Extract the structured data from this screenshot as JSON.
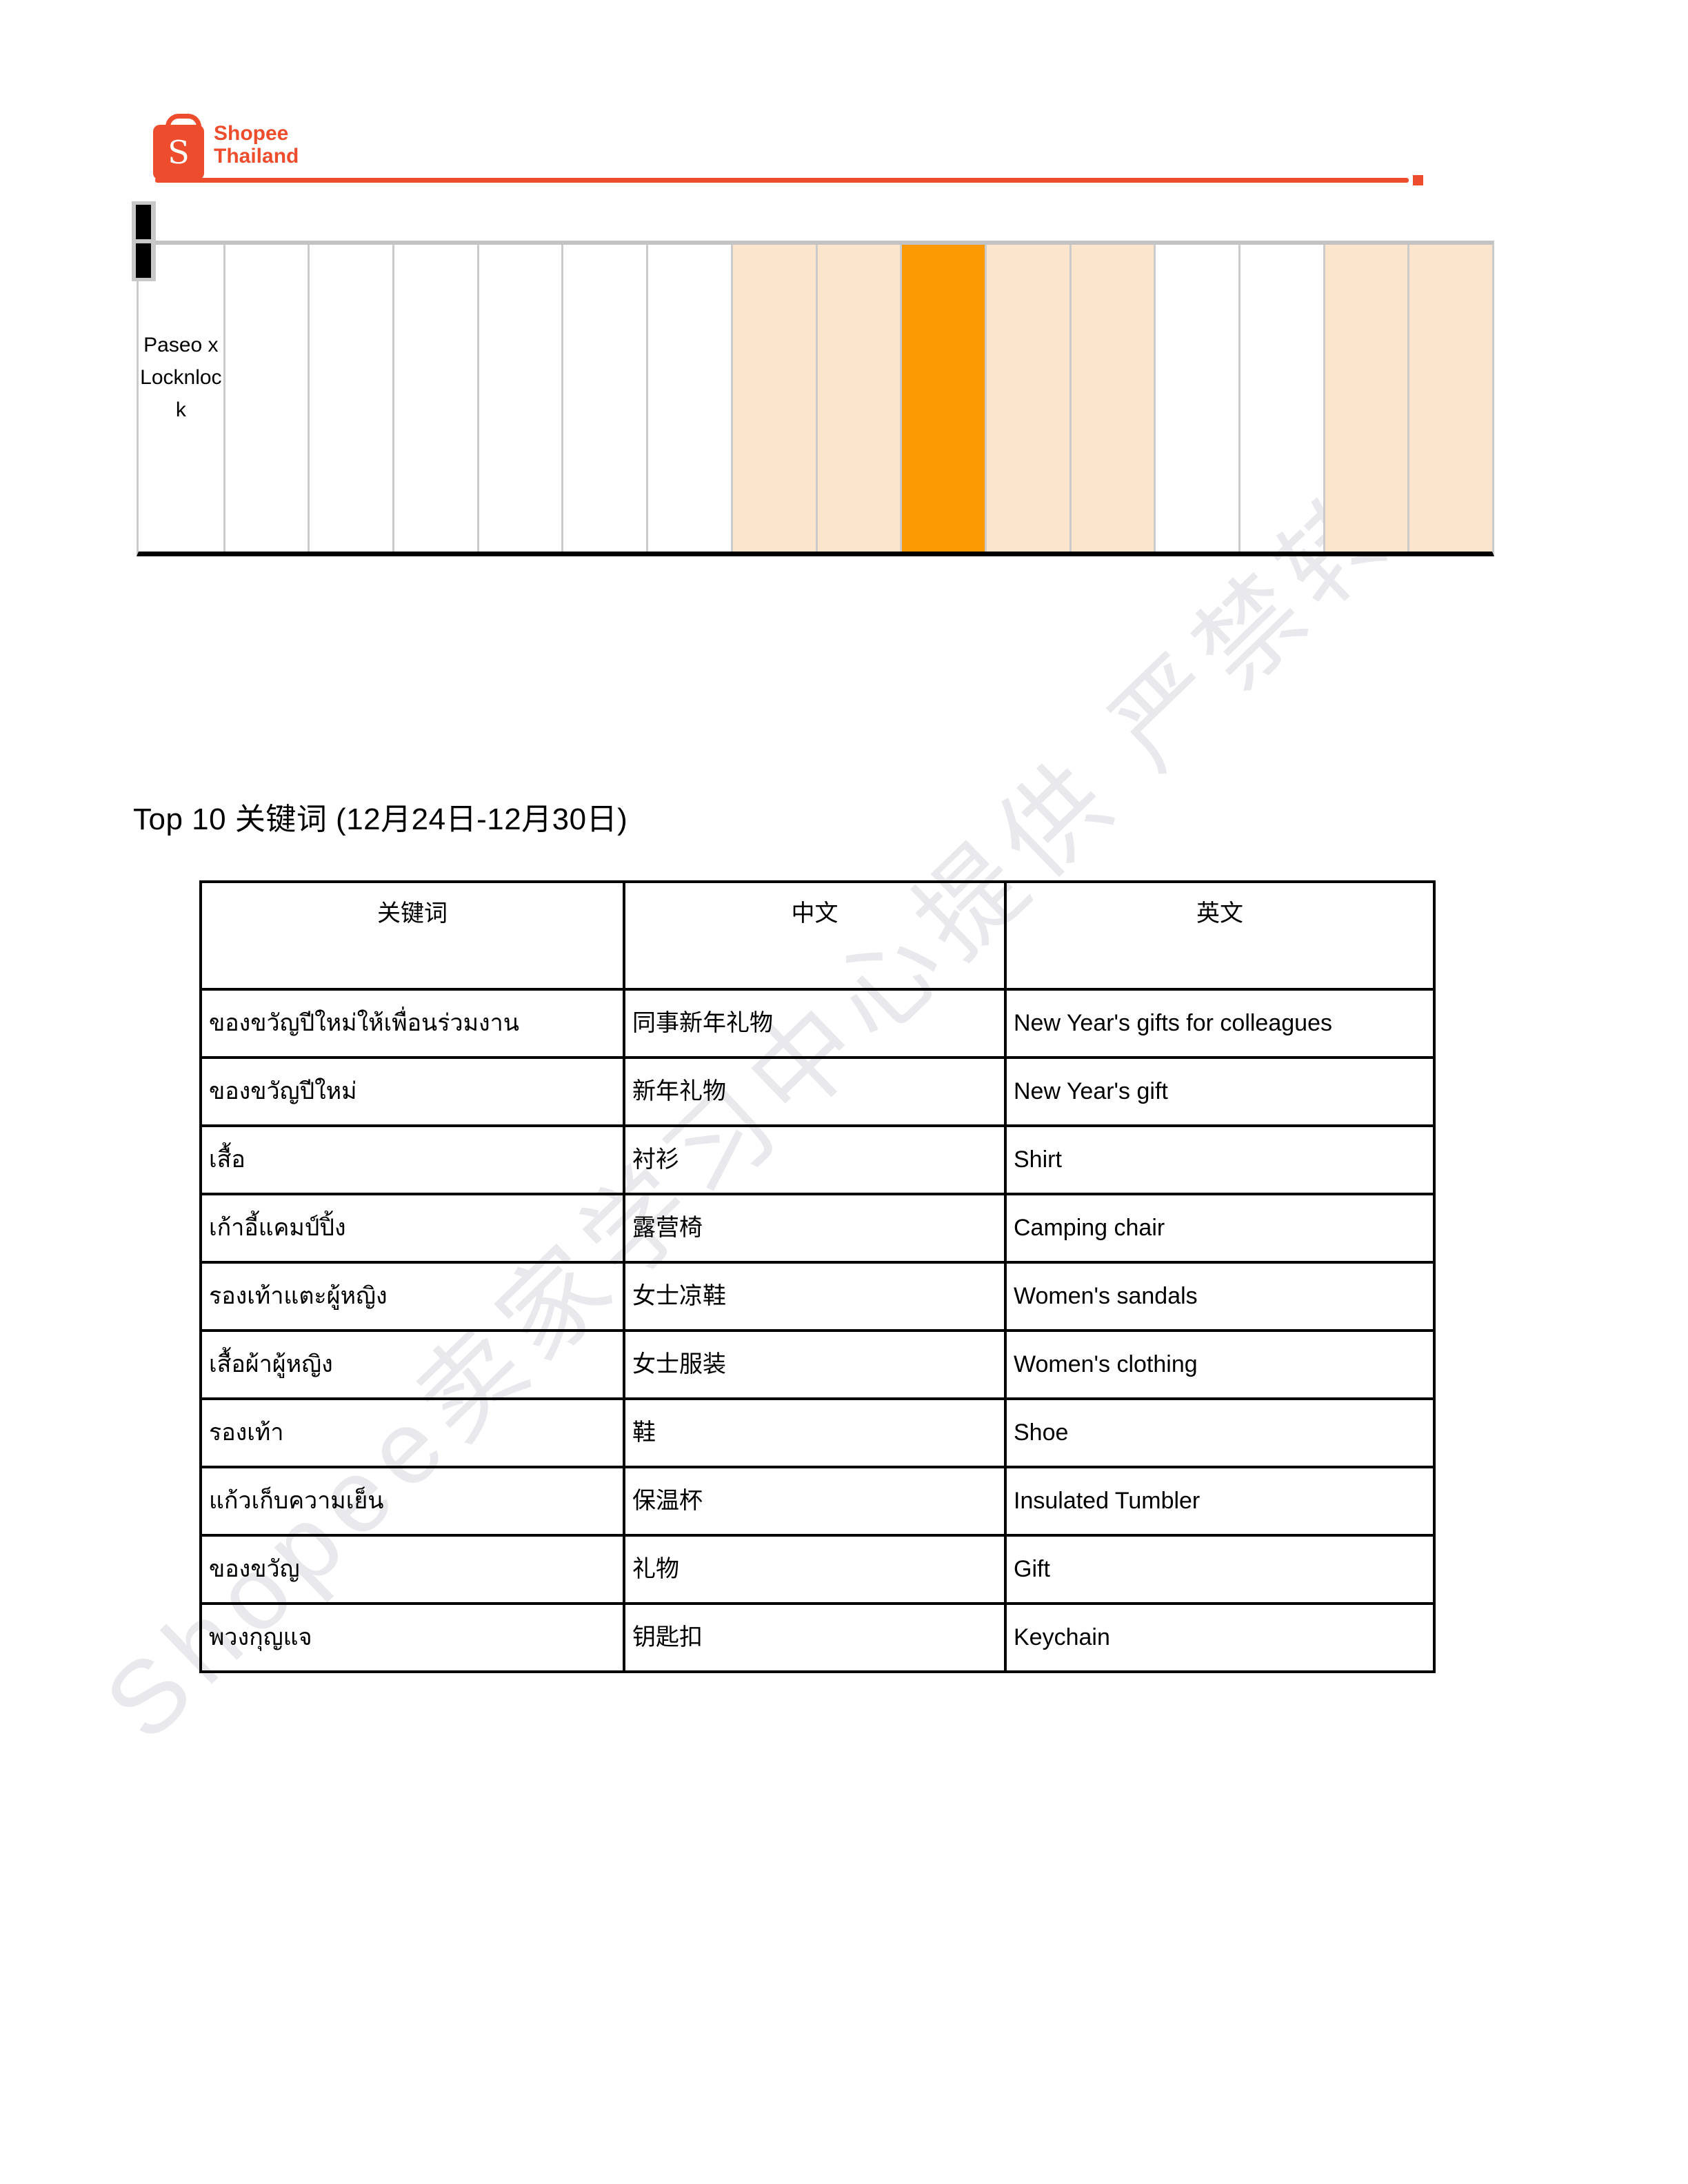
{
  "logo": {
    "line1": "Shopee",
    "line2": "Thailand",
    "bag_letter": "S"
  },
  "top_grid": {
    "first_cell_label": "Paseo x Locknlock",
    "num_columns": 16,
    "column_fills": [
      "none",
      "none",
      "none",
      "none",
      "none",
      "none",
      "none",
      "peach",
      "peach",
      "orange",
      "peach",
      "peach",
      "none",
      "none",
      "peach",
      "peach"
    ]
  },
  "title": "Top 10 关键词 (12月24日-12月30日)",
  "keyword_table": {
    "headers": [
      "关键词",
      "中文",
      "英文"
    ],
    "rows": [
      {
        "keyword": "ของขวัญปีใหม่ให้เพื่อนร่วมงาน",
        "chinese": "同事新年礼物",
        "english": "New Year's gifts for colleagues"
      },
      {
        "keyword": "ของขวัญปีใหม่",
        "chinese": "新年礼物",
        "english": "New Year's gift"
      },
      {
        "keyword": "เสื้อ",
        "chinese": "衬衫",
        "english": "Shirt"
      },
      {
        "keyword": "เก้าอี้แคมป์ปิ้ง",
        "chinese": "露营椅",
        "english": "Camping chair"
      },
      {
        "keyword": "รองเท้าแตะผู้หญิง",
        "chinese": "女士凉鞋",
        "english": "Women's sandals"
      },
      {
        "keyword": "เสื้อผ้าผู้หญิง",
        "chinese": "女士服装",
        "english": "Women's clothing"
      },
      {
        "keyword": "รองเท้า",
        "chinese": "鞋",
        "english": "Shoe"
      },
      {
        "keyword": "แก้วเก็บความเย็น",
        "chinese": "保温杯",
        "english": "Insulated Tumbler"
      },
      {
        "keyword": "ของขวัญ",
        "chinese": "礼物",
        "english": "Gift"
      },
      {
        "keyword": "พวงกุญแจ",
        "chinese": "钥匙扣",
        "english": "Keychain"
      }
    ]
  },
  "watermark": "Shopee卖家学习中心提供 严禁转载",
  "colors": {
    "brand": "#EE4D2D",
    "orange": "#FB9900",
    "peach": "#FCE5CD",
    "grid_border": "#CBCBCB",
    "watermark": "#E9E9ED"
  }
}
